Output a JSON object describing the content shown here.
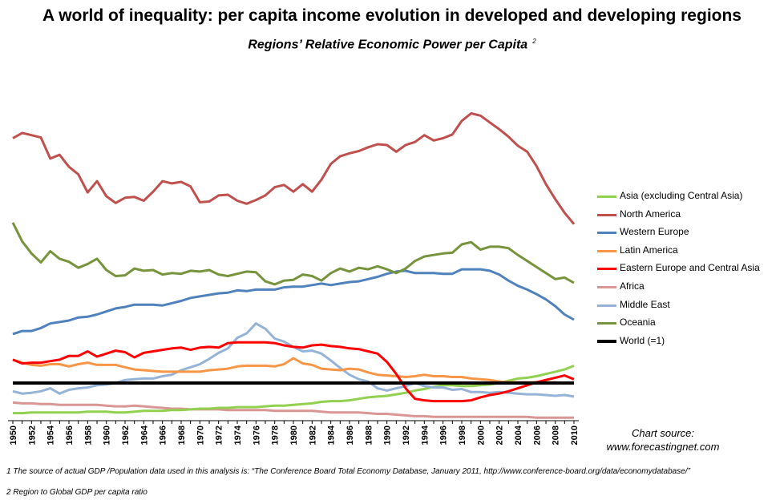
{
  "chart_data": {
    "type": "line",
    "title": "A world of inequality: per capita income evolution in developed and developing regions",
    "subtitle": "Regions’ Relative Economic Power per Capita",
    "subtitle_note": "2",
    "xlabel": "",
    "ylabel": "",
    "x": [
      1950,
      1951,
      1952,
      1953,
      1954,
      1955,
      1956,
      1957,
      1958,
      1959,
      1960,
      1961,
      1962,
      1963,
      1964,
      1965,
      1966,
      1967,
      1968,
      1969,
      1970,
      1971,
      1972,
      1973,
      1974,
      1975,
      1976,
      1977,
      1978,
      1979,
      1980,
      1981,
      1982,
      1983,
      1984,
      1985,
      1986,
      1987,
      1988,
      1989,
      1990,
      1991,
      1992,
      1993,
      1994,
      1995,
      1996,
      1997,
      1998,
      1999,
      2000,
      2001,
      2002,
      2003,
      2004,
      2005,
      2006,
      2007,
      2008,
      2009,
      2010
    ],
    "x_tick_labels": [
      "1950",
      "1952",
      "1954",
      "1956",
      "1958",
      "1960",
      "1962",
      "1964",
      "1966",
      "1968",
      "1970",
      "1972",
      "1974",
      "1976",
      "1978",
      "1980",
      "1982",
      "1984",
      "1986",
      "1988",
      "1990",
      "1992",
      "1994",
      "1996",
      "1998",
      "2000",
      "2002",
      "2004",
      "2006",
      "2008",
      "2010"
    ],
    "ylim": [
      0,
      5.0
    ],
    "y_axis_labels_visible": false,
    "grid": false,
    "legend_position": "right",
    "series": [
      {
        "name": "Asia (excluding Central Asia)",
        "color": "#92D050",
        "values": [
          0.1,
          0.1,
          0.11,
          0.11,
          0.11,
          0.11,
          0.11,
          0.11,
          0.12,
          0.12,
          0.12,
          0.11,
          0.11,
          0.12,
          0.13,
          0.13,
          0.13,
          0.14,
          0.14,
          0.15,
          0.16,
          0.16,
          0.17,
          0.17,
          0.18,
          0.18,
          0.18,
          0.19,
          0.2,
          0.2,
          0.21,
          0.22,
          0.23,
          0.25,
          0.26,
          0.26,
          0.27,
          0.29,
          0.31,
          0.32,
          0.33,
          0.35,
          0.37,
          0.4,
          0.42,
          0.45,
          0.47,
          0.47,
          0.46,
          0.46,
          0.47,
          0.48,
          0.5,
          0.53,
          0.56,
          0.57,
          0.59,
          0.62,
          0.65,
          0.68,
          0.73
        ]
      },
      {
        "name": "North America",
        "color": "#C0504D",
        "values": [
          3.75,
          3.82,
          3.79,
          3.76,
          3.48,
          3.53,
          3.37,
          3.27,
          3.03,
          3.18,
          2.98,
          2.89,
          2.96,
          2.97,
          2.92,
          3.04,
          3.18,
          3.15,
          3.17,
          3.11,
          2.9,
          2.91,
          2.99,
          3.0,
          2.92,
          2.88,
          2.93,
          2.99,
          3.1,
          3.13,
          3.04,
          3.14,
          3.04,
          3.2,
          3.41,
          3.51,
          3.55,
          3.58,
          3.63,
          3.67,
          3.66,
          3.57,
          3.66,
          3.7,
          3.79,
          3.72,
          3.75,
          3.8,
          3.98,
          4.08,
          4.05,
          3.96,
          3.87,
          3.77,
          3.65,
          3.57,
          3.38,
          3.14,
          2.94,
          2.76,
          2.61
        ]
      },
      {
        "name": "Western Europe",
        "color": "#4F81BD",
        "values": [
          1.15,
          1.19,
          1.19,
          1.23,
          1.29,
          1.31,
          1.33,
          1.37,
          1.38,
          1.41,
          1.45,
          1.49,
          1.51,
          1.54,
          1.54,
          1.54,
          1.53,
          1.56,
          1.59,
          1.63,
          1.65,
          1.67,
          1.69,
          1.7,
          1.73,
          1.72,
          1.74,
          1.74,
          1.74,
          1.77,
          1.78,
          1.78,
          1.8,
          1.82,
          1.8,
          1.82,
          1.84,
          1.85,
          1.88,
          1.91,
          1.95,
          1.98,
          1.99,
          1.96,
          1.96,
          1.96,
          1.95,
          1.95,
          2.01,
          2.01,
          2.01,
          1.99,
          1.94,
          1.86,
          1.79,
          1.74,
          1.68,
          1.61,
          1.52,
          1.41,
          1.34
        ]
      },
      {
        "name": "Latin America",
        "color": "#F79646",
        "values": [
          0.81,
          0.77,
          0.74,
          0.73,
          0.75,
          0.75,
          0.72,
          0.75,
          0.77,
          0.74,
          0.74,
          0.74,
          0.71,
          0.68,
          0.67,
          0.66,
          0.65,
          0.65,
          0.65,
          0.65,
          0.65,
          0.67,
          0.68,
          0.69,
          0.72,
          0.73,
          0.73,
          0.73,
          0.72,
          0.75,
          0.83,
          0.76,
          0.74,
          0.69,
          0.68,
          0.67,
          0.69,
          0.68,
          0.64,
          0.61,
          0.6,
          0.59,
          0.58,
          0.59,
          0.61,
          0.59,
          0.59,
          0.58,
          0.58,
          0.56,
          0.55,
          0.54,
          0.52,
          0.51,
          0.51,
          0.51,
          0.51,
          0.51,
          0.51,
          0.5,
          0.5
        ]
      },
      {
        "name": "Eastern Europe and Central Asia",
        "color": "#FF0000",
        "values": [
          0.81,
          0.76,
          0.77,
          0.77,
          0.79,
          0.81,
          0.86,
          0.86,
          0.92,
          0.85,
          0.89,
          0.93,
          0.91,
          0.84,
          0.9,
          0.92,
          0.94,
          0.96,
          0.97,
          0.94,
          0.97,
          0.98,
          0.97,
          1.03,
          1.04,
          1.04,
          1.04,
          1.04,
          1.03,
          1.0,
          0.98,
          0.97,
          1.0,
          1.01,
          0.99,
          0.98,
          0.96,
          0.95,
          0.92,
          0.89,
          0.78,
          0.62,
          0.43,
          0.29,
          0.27,
          0.26,
          0.26,
          0.26,
          0.26,
          0.27,
          0.31,
          0.34,
          0.36,
          0.39,
          0.43,
          0.47,
          0.51,
          0.54,
          0.57,
          0.6,
          0.55
        ]
      },
      {
        "name": "Africa",
        "color": "#D99694",
        "values": [
          0.24,
          0.23,
          0.23,
          0.22,
          0.22,
          0.21,
          0.21,
          0.21,
          0.21,
          0.21,
          0.2,
          0.19,
          0.19,
          0.2,
          0.19,
          0.18,
          0.17,
          0.16,
          0.16,
          0.15,
          0.15,
          0.15,
          0.15,
          0.14,
          0.14,
          0.14,
          0.14,
          0.14,
          0.13,
          0.13,
          0.13,
          0.13,
          0.13,
          0.12,
          0.11,
          0.11,
          0.11,
          0.11,
          0.1,
          0.09,
          0.09,
          0.08,
          0.07,
          0.06,
          0.06,
          0.05,
          0.05,
          0.05,
          0.05,
          0.05,
          0.05,
          0.05,
          0.05,
          0.05,
          0.05,
          0.05,
          0.04,
          0.04,
          0.04,
          0.04,
          0.04
        ]
      },
      {
        "name": "Middle East",
        "color": "#95B3D7",
        "values": [
          0.39,
          0.36,
          0.37,
          0.39,
          0.43,
          0.36,
          0.41,
          0.43,
          0.44,
          0.47,
          0.48,
          0.5,
          0.54,
          0.55,
          0.56,
          0.56,
          0.59,
          0.61,
          0.67,
          0.71,
          0.75,
          0.82,
          0.9,
          0.96,
          1.1,
          1.16,
          1.29,
          1.22,
          1.09,
          1.05,
          0.98,
          0.92,
          0.93,
          0.89,
          0.8,
          0.7,
          0.61,
          0.55,
          0.52,
          0.43,
          0.4,
          0.43,
          0.46,
          0.5,
          0.46,
          0.44,
          0.44,
          0.41,
          0.42,
          0.38,
          0.38,
          0.37,
          0.38,
          0.37,
          0.36,
          0.35,
          0.35,
          0.34,
          0.33,
          0.34,
          0.32
        ]
      },
      {
        "name": "Oceania",
        "color": "#77933C",
        "values": [
          2.63,
          2.38,
          2.22,
          2.1,
          2.25,
          2.15,
          2.11,
          2.03,
          2.08,
          2.15,
          2.0,
          1.92,
          1.93,
          2.02,
          1.99,
          2.0,
          1.94,
          1.96,
          1.95,
          1.99,
          1.98,
          2.0,
          1.94,
          1.92,
          1.95,
          1.98,
          1.97,
          1.85,
          1.81,
          1.86,
          1.87,
          1.94,
          1.92,
          1.86,
          1.96,
          2.02,
          1.98,
          2.03,
          2.01,
          2.05,
          2.01,
          1.96,
          2.02,
          2.12,
          2.18,
          2.2,
          2.22,
          2.23,
          2.34,
          2.37,
          2.27,
          2.31,
          2.31,
          2.29,
          2.2,
          2.12,
          2.04,
          1.96,
          1.88,
          1.9,
          1.83
        ]
      },
      {
        "name": "World (=1)",
        "color": "#000000",
        "values": [
          0.5,
          0.5,
          0.5,
          0.5,
          0.5,
          0.5,
          0.5,
          0.5,
          0.5,
          0.5,
          0.5,
          0.5,
          0.5,
          0.5,
          0.5,
          0.5,
          0.5,
          0.5,
          0.5,
          0.5,
          0.5,
          0.5,
          0.5,
          0.5,
          0.5,
          0.5,
          0.5,
          0.5,
          0.5,
          0.5,
          0.5,
          0.5,
          0.5,
          0.5,
          0.5,
          0.5,
          0.5,
          0.5,
          0.5,
          0.5,
          0.5,
          0.5,
          0.5,
          0.5,
          0.5,
          0.5,
          0.5,
          0.5,
          0.5,
          0.5,
          0.5,
          0.5,
          0.5,
          0.5,
          0.5,
          0.5,
          0.5,
          0.5,
          0.5,
          0.5,
          0.5
        ]
      }
    ]
  },
  "source": {
    "line1": "Chart source:",
    "line2": "www.forecastingnet.com"
  },
  "footnotes": {
    "note1": "1 The source of actual GDP /Population data used in this analysis is: “The Conference Board Total Economy Database, January 2011, http://www.conference-board.org/data/economydatabase/”",
    "note2": "2 Region to Global GDP per capita ratio"
  }
}
